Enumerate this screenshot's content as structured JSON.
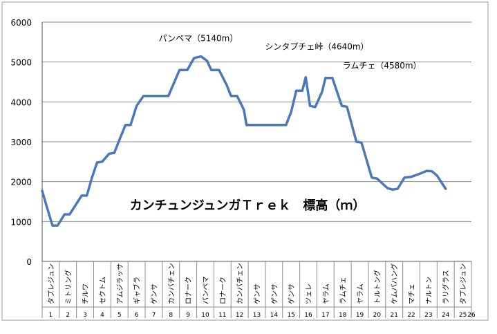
{
  "chart_data": {
    "type": "line",
    "title": "カンチュンジュンガＴｒｅｋ　標高（ｍ）",
    "xlabel": "",
    "ylabel": "",
    "ylim": [
      0,
      6000
    ],
    "y_ticks": [
      "0",
      "1000",
      "2000",
      "3000",
      "4000",
      "5000",
      "6000"
    ],
    "grid": true,
    "legend": "none",
    "line_color": "#4a78b8",
    "day_labels": [
      "1",
      "2",
      "3",
      "4",
      "5",
      "6",
      "7",
      "8",
      "9",
      "10",
      "11",
      "12",
      "13",
      "14",
      "15",
      "16",
      "17",
      "18",
      "19",
      "20",
      "21",
      "22",
      "23",
      "24",
      "25",
      "26"
    ],
    "place_labels": [
      "タプレジュン",
      "ミトリング",
      "チルワ",
      "セクトム",
      "アムジラッサ",
      "ギャブラ",
      "ゲンサ",
      "カンバチェン",
      "ロナーク",
      "パンペマ",
      "ロナーク",
      "カンバチェン",
      "ゲンサ",
      "ゲンサ",
      "ゲンサ",
      "ツェレ",
      "ヤラム",
      "ラムチェ",
      "ヤラム",
      "トルトング",
      "ケムバハング",
      "マチェ",
      "ナルトン",
      "ラリグラス",
      "タプレジュン"
    ],
    "annotations": [
      {
        "text": "パンペマ（5140m）",
        "day": 10.5,
        "value": 5140
      },
      {
        "text": "シンタプチェ峠（4640m）",
        "day": 17,
        "value": 4640
      },
      {
        "text": "ラムチェ（4580m）",
        "day": 18.5,
        "value": 4580
      }
    ],
    "series": [
      {
        "points": [
          [
            1,
            1770
          ],
          [
            1.25,
            1400
          ],
          [
            1.6,
            900
          ],
          [
            1.9,
            900
          ],
          [
            2.3,
            1180
          ],
          [
            2.6,
            1180
          ],
          [
            2.9,
            1380
          ],
          [
            3.3,
            1650
          ],
          [
            3.6,
            1650
          ],
          [
            3.9,
            2100
          ],
          [
            4.2,
            2480
          ],
          [
            4.5,
            2500
          ],
          [
            4.9,
            2700
          ],
          [
            5.2,
            2720
          ],
          [
            5.5,
            3050
          ],
          [
            5.85,
            3420
          ],
          [
            6.15,
            3420
          ],
          [
            6.5,
            3900
          ],
          [
            6.9,
            4150
          ],
          [
            8.0,
            4150
          ],
          [
            8.35,
            4150
          ],
          [
            8.7,
            4500
          ],
          [
            9.0,
            4800
          ],
          [
            9.45,
            4800
          ],
          [
            9.85,
            5100
          ],
          [
            10.25,
            5140
          ],
          [
            10.6,
            5030
          ],
          [
            10.85,
            4800
          ],
          [
            11.3,
            4800
          ],
          [
            11.75,
            4420
          ],
          [
            12.0,
            4150
          ],
          [
            12.35,
            4150
          ],
          [
            12.75,
            3800
          ],
          [
            12.9,
            3420
          ],
          [
            15.2,
            3420
          ],
          [
            15.5,
            3750
          ],
          [
            15.8,
            4280
          ],
          [
            16.15,
            4280
          ],
          [
            16.35,
            4620
          ],
          [
            16.6,
            3900
          ],
          [
            16.9,
            3870
          ],
          [
            17.3,
            4250
          ],
          [
            17.5,
            4600
          ],
          [
            17.9,
            4600
          ],
          [
            18.45,
            3900
          ],
          [
            18.75,
            3880
          ],
          [
            19.3,
            3000
          ],
          [
            19.6,
            2980
          ],
          [
            20.2,
            2100
          ],
          [
            20.5,
            2080
          ],
          [
            21.1,
            1840
          ],
          [
            21.4,
            1800
          ],
          [
            21.7,
            1820
          ],
          [
            22.1,
            2100
          ],
          [
            22.5,
            2120
          ],
          [
            23.0,
            2200
          ],
          [
            23.4,
            2270
          ],
          [
            23.7,
            2260
          ],
          [
            24.0,
            2150
          ],
          [
            24.5,
            1820
          ]
        ]
      }
    ]
  }
}
